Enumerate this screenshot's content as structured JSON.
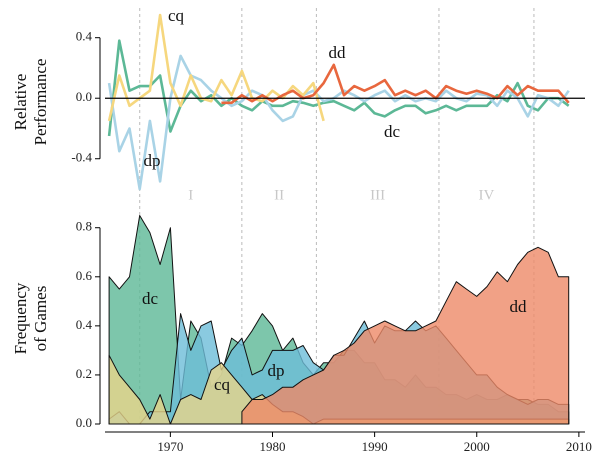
{
  "chart_data": [
    {
      "type": "line",
      "ylabel_lines": [
        "Relative",
        "Performance"
      ],
      "x": [
        1964,
        1965,
        1966,
        1967,
        1968,
        1969,
        1970,
        1971,
        1972,
        1973,
        1974,
        1975,
        1976,
        1977,
        1978,
        1979,
        1980,
        1981,
        1982,
        1983,
        1984,
        1985,
        1986,
        1987,
        1988,
        1989,
        1990,
        1991,
        1992,
        1993,
        1994,
        1995,
        1996,
        1997,
        1998,
        1999,
        2000,
        2001,
        2002,
        2003,
        2004,
        2005,
        2006,
        2007,
        2008,
        2009
      ],
      "xlim": [
        1963.6,
        2010.6
      ],
      "ylim": [
        -0.6,
        0.55
      ],
      "yticks": [
        -0.4,
        {
          "value": 0,
          "label": "0.0"
        },
        0.4
      ],
      "era_boundaries": [
        1967,
        1977,
        1984.3,
        1996.3,
        2005.6
      ],
      "era_labels": [
        "I",
        "II",
        "III",
        "IV"
      ],
      "series": [
        {
          "name": "dc",
          "color": "#5cb896",
          "values": [
            -0.25,
            0.38,
            0.05,
            0.08,
            0.08,
            0.15,
            -0.22,
            -0.05,
            0.05,
            -0.02,
            0.02,
            -0.05,
            0.0,
            -0.05,
            -0.08,
            -0.02,
            -0.05,
            -0.05,
            -0.02,
            -0.03,
            -0.05,
            -0.03,
            -0.02,
            -0.05,
            -0.08,
            -0.03,
            -0.1,
            -0.12,
            -0.08,
            -0.05,
            -0.05,
            -0.1,
            -0.08,
            -0.05,
            -0.08,
            -0.05,
            -0.05,
            -0.05,
            0.02,
            -0.02,
            0.1,
            -0.05,
            -0.08,
            0.0,
            0.0,
            -0.05
          ]
        },
        {
          "name": "dp",
          "color": "#a9d3e6",
          "values": [
            0.1,
            -0.35,
            -0.2,
            -0.6,
            -0.15,
            -0.55,
            0.0,
            0.28,
            0.15,
            0.12,
            0.05,
            0.0,
            -0.05,
            -0.02,
            0.05,
            0.02,
            -0.08,
            -0.15,
            -0.12,
            0.02,
            0.05,
            -0.02,
            0.0,
            0.05,
            0.02,
            -0.02,
            0.02,
            0.05,
            -0.02,
            0.02,
            -0.02,
            0.0,
            -0.02,
            0.05,
            0.0,
            -0.02,
            0.03,
            0.02,
            -0.05,
            0.05,
            0.0,
            -0.12,
            0.02,
            0.0,
            -0.05,
            0.05
          ]
        },
        {
          "name": "cq",
          "color": "#f6d77e",
          "values": [
            -0.15,
            0.15,
            -0.05,
            0.0,
            0.05,
            0.55,
            0.1,
            -0.05,
            0.15,
            0.0,
            -0.02,
            0.12,
            0.02,
            0.18,
            0.0,
            -0.02,
            0.05,
            0.0,
            0.08,
            0.02,
            0.1,
            -0.15,
            null,
            null,
            null,
            null,
            null,
            null,
            null,
            null,
            null,
            null,
            null,
            null,
            null,
            null,
            null,
            null,
            null,
            null,
            null,
            null,
            null,
            null,
            null,
            null
          ]
        },
        {
          "name": "dd",
          "color": "#e8673e",
          "values": [
            null,
            null,
            null,
            null,
            null,
            null,
            null,
            null,
            null,
            null,
            null,
            -0.03,
            -0.03,
            0.02,
            -0.02,
            0.02,
            -0.02,
            0.02,
            0.05,
            0.0,
            0.02,
            0.1,
            0.22,
            0.02,
            0.08,
            0.05,
            0.08,
            0.12,
            0.02,
            0.05,
            0.02,
            0.05,
            0.0,
            0.08,
            0.05,
            0.03,
            0.05,
            0.03,
            0.0,
            0.08,
            0.02,
            0.08,
            0.05,
            0.05,
            0.05,
            -0.03
          ]
        }
      ]
    },
    {
      "type": "area",
      "ylabel_lines": [
        "Frequency",
        "of Games"
      ],
      "x": [
        1964,
        1965,
        1966,
        1967,
        1968,
        1969,
        1970,
        1971,
        1972,
        1973,
        1974,
        1975,
        1976,
        1977,
        1978,
        1979,
        1980,
        1981,
        1982,
        1983,
        1984,
        1985,
        1986,
        1987,
        1988,
        1989,
        1990,
        1991,
        1992,
        1993,
        1994,
        1995,
        1996,
        1997,
        1998,
        1999,
        2000,
        2001,
        2002,
        2003,
        2004,
        2005,
        2006,
        2007,
        2008,
        2009
      ],
      "xlim": [
        1963.6,
        2010.6
      ],
      "xticks": [
        1970,
        1980,
        1990,
        2000,
        2010
      ],
      "ylim": [
        0,
        0.86
      ],
      "yticks": [
        {
          "value": 0,
          "label": "0.0"
        },
        0.2,
        0.4,
        0.6,
        0.8
      ],
      "series": [
        {
          "name": "dc",
          "color": "#5cb896",
          "values": [
            0.6,
            0.55,
            0.6,
            0.85,
            0.78,
            0.65,
            0.8,
            0.1,
            0.42,
            0.35,
            0.15,
            0.2,
            0.35,
            0.32,
            0.38,
            0.45,
            0.4,
            0.3,
            0.35,
            0.25,
            0.2,
            0.25,
            0.25,
            0.3,
            0.3,
            0.25,
            0.25,
            0.18,
            0.18,
            0.15,
            0.2,
            0.15,
            0.15,
            0.12,
            0.12,
            0.1,
            0.12,
            0.1,
            0.1,
            0.12,
            0.1,
            0.1,
            0.08,
            0.08,
            0.05,
            0.05
          ]
        },
        {
          "name": "dp",
          "color": "#6dbdd8",
          "values": [
            0.02,
            0.05,
            0.0,
            0.0,
            0.05,
            0.05,
            0.05,
            0.45,
            0.3,
            0.4,
            0.42,
            0.22,
            0.3,
            0.35,
            0.2,
            0.22,
            0.3,
            0.3,
            0.3,
            0.32,
            0.25,
            0.22,
            0.28,
            0.28,
            0.35,
            0.42,
            0.33,
            0.4,
            0.38,
            0.38,
            0.42,
            0.38,
            0.4,
            0.35,
            0.3,
            0.25,
            0.2,
            0.2,
            0.15,
            0.12,
            0.1,
            0.08,
            0.1,
            0.1,
            0.08,
            0.08
          ]
        },
        {
          "name": "cq",
          "color": "#e8d48a",
          "values": [
            0.28,
            0.2,
            0.15,
            0.1,
            0.02,
            0.12,
            0.0,
            0.1,
            0.12,
            0.1,
            0.22,
            0.25,
            0.2,
            0.15,
            0.1,
            0.12,
            0.08,
            0.05,
            0.05,
            0.03,
            0.0,
            0.02,
            0.02,
            0.02,
            0.02,
            0.02,
            0.02,
            0.02,
            0.02,
            0.02,
            0.02,
            0.02,
            0.02,
            0.02,
            0.02,
            0.02,
            0.02,
            0.02,
            0.02,
            0.02,
            0.02,
            0.02,
            0.02,
            0.02,
            0.02,
            0.02
          ]
        },
        {
          "name": "dd",
          "color": "#ee8a68",
          "values": [
            null,
            null,
            null,
            null,
            null,
            null,
            null,
            null,
            null,
            null,
            null,
            null,
            null,
            0.05,
            0.1,
            0.1,
            0.12,
            0.15,
            0.15,
            0.18,
            0.2,
            0.22,
            0.28,
            0.3,
            0.33,
            0.38,
            0.4,
            0.42,
            0.4,
            0.38,
            0.38,
            0.4,
            0.42,
            0.5,
            0.58,
            0.55,
            0.52,
            0.56,
            0.62,
            0.58,
            0.65,
            0.7,
            0.72,
            0.7,
            0.6,
            0.6
          ]
        }
      ]
    }
  ]
}
